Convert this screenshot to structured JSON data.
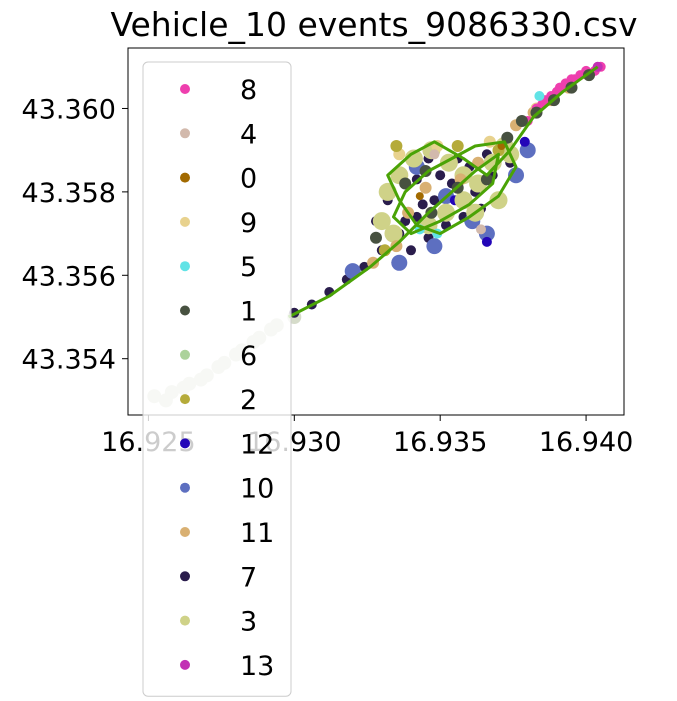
{
  "chart_data": {
    "type": "scatter",
    "title": "Vehicle_10 events_9086330.csv",
    "xlabel": "",
    "ylabel": "",
    "xlim": [
      16.9243,
      16.9413
    ],
    "ylim": [
      43.35265,
      43.36145
    ],
    "xticks": [
      16.925,
      16.93,
      16.935,
      16.94
    ],
    "xtick_labels": [
      "16.925",
      "16.930",
      "16.935",
      "16.940"
    ],
    "yticks": [
      43.354,
      43.356,
      43.358,
      43.36
    ],
    "ytick_labels": [
      "43.354",
      "43.356",
      "43.358",
      "43.360"
    ],
    "grid": false,
    "legend_position": "upper-left",
    "legend": [
      {
        "label": "8",
        "color": "#ee3fae"
      },
      {
        "label": "4",
        "color": "#d2b9ac"
      },
      {
        "label": "0",
        "color": "#a26a00"
      },
      {
        "label": "9",
        "color": "#e8d28e"
      },
      {
        "label": "5",
        "color": "#61e3e6"
      },
      {
        "label": "1",
        "color": "#475140"
      },
      {
        "label": "6",
        "color": "#acd29b"
      },
      {
        "label": "2",
        "color": "#b5ab3a"
      },
      {
        "label": "12",
        "color": "#2306b8"
      },
      {
        "label": "10",
        "color": "#5d6fc0"
      },
      {
        "label": "11",
        "color": "#d9b072"
      },
      {
        "label": "7",
        "color": "#2a1d4c"
      },
      {
        "label": "3",
        "color": "#cfd288"
      },
      {
        "label": "13",
        "color": "#c22fb4"
      }
    ],
    "series": [
      {
        "name": "6",
        "color": "#d6dcca",
        "marker_size": 7,
        "points": [
          [
            16.9252,
            43.3531
          ],
          [
            16.9258,
            43.3532
          ],
          [
            16.9264,
            43.3534
          ],
          [
            16.927,
            43.3536
          ],
          [
            16.9276,
            43.3539
          ],
          [
            16.9282,
            43.3542
          ],
          [
            16.9288,
            43.3545
          ],
          [
            16.9294,
            43.3548
          ],
          [
            16.93,
            43.355
          ],
          [
            16.9256,
            43.353
          ],
          [
            16.9262,
            43.3533
          ],
          [
            16.9268,
            43.3535
          ],
          [
            16.9274,
            43.3538
          ],
          [
            16.928,
            43.3541
          ],
          [
            16.9286,
            43.3544
          ],
          [
            16.9292,
            43.3547
          ]
        ]
      },
      {
        "name": "7",
        "color": "#2a1d4c",
        "marker_size": 5,
        "points": [
          [
            16.93,
            43.3551
          ],
          [
            16.9306,
            43.3553
          ],
          [
            16.9312,
            43.3556
          ],
          [
            16.9318,
            43.3559
          ],
          [
            16.9324,
            43.3562
          ],
          [
            16.933,
            43.3566
          ],
          [
            16.9336,
            43.357
          ],
          [
            16.9342,
            43.3574
          ],
          [
            16.9348,
            43.3578
          ],
          [
            16.9354,
            43.3582
          ],
          [
            16.936,
            43.3586
          ],
          [
            16.9366,
            43.3589
          ],
          [
            16.9372,
            43.3591
          ],
          [
            16.9335,
            43.3563
          ],
          [
            16.934,
            43.3566
          ],
          [
            16.9346,
            43.3569
          ],
          [
            16.9352,
            43.3572
          ],
          [
            16.9358,
            43.3574
          ],
          [
            16.9364,
            43.3576
          ],
          [
            16.9338,
            43.3573
          ],
          [
            16.9344,
            43.3577
          ],
          [
            16.935,
            43.3584
          ],
          [
            16.9356,
            43.3588
          ],
          [
            16.9362,
            43.358
          ],
          [
            16.9368,
            43.3584
          ],
          [
            16.9374,
            43.3587
          ],
          [
            16.9332,
            43.3578
          ],
          [
            16.9328,
            43.3573
          ],
          [
            16.9342,
            43.3583
          ],
          [
            16.9346,
            43.3588
          ]
        ]
      },
      {
        "name": "10",
        "color": "#5d6fc0",
        "marker_size": 8,
        "points": [
          [
            16.9336,
            43.3563
          ],
          [
            16.9348,
            43.3567
          ],
          [
            16.9366,
            43.357
          ],
          [
            16.9376,
            43.3584
          ],
          [
            16.938,
            43.359
          ],
          [
            16.9352,
            43.3579
          ],
          [
            16.9342,
            43.3586
          ],
          [
            16.932,
            43.3561
          ],
          [
            16.9361,
            43.3573
          ]
        ]
      },
      {
        "name": "12",
        "color": "#2306b8",
        "marker_size": 5,
        "points": [
          [
            16.9379,
            43.3592
          ],
          [
            16.9366,
            43.3568
          ],
          [
            16.9355,
            43.3578
          ]
        ]
      },
      {
        "name": "3",
        "color": "#cfd288",
        "marker_size": 9,
        "points": [
          [
            16.9332,
            43.358
          ],
          [
            16.9336,
            43.3584
          ],
          [
            16.9341,
            43.3588
          ],
          [
            16.9347,
            43.359
          ],
          [
            16.9353,
            43.3587
          ],
          [
            16.9358,
            43.3584
          ],
          [
            16.9363,
            43.3582
          ],
          [
            16.9368,
            43.3587
          ],
          [
            16.9372,
            43.3591
          ],
          [
            16.933,
            43.3573
          ],
          [
            16.9334,
            43.357
          ],
          [
            16.9346,
            43.3572
          ],
          [
            16.9352,
            43.3575
          ],
          [
            16.9358,
            43.3578
          ],
          [
            16.9362,
            43.3575
          ],
          [
            16.937,
            43.3578
          ],
          [
            16.9374,
            43.3589
          ]
        ]
      },
      {
        "name": "11",
        "color": "#d9b072",
        "marker_size": 6,
        "points": [
          [
            16.9376,
            43.3596
          ],
          [
            16.9382,
            43.3599
          ],
          [
            16.9388,
            43.3602
          ],
          [
            16.9394,
            43.3605
          ],
          [
            16.9339,
            43.3575
          ],
          [
            16.9345,
            43.3581
          ],
          [
            16.9357,
            43.3583
          ],
          [
            16.9363,
            43.3587
          ],
          [
            16.9327,
            43.3563
          ],
          [
            16.9335,
            43.3567
          ]
        ]
      },
      {
        "name": "9",
        "color": "#e8d28e",
        "marker_size": 6,
        "points": [
          [
            16.9383,
            43.36
          ],
          [
            16.9349,
            43.3591
          ],
          [
            16.9336,
            43.3589
          ],
          [
            16.9367,
            43.3592
          ]
        ]
      },
      {
        "name": "8",
        "color": "#ee3fae",
        "marker_size": 5,
        "points": [
          [
            16.938,
            43.3597
          ],
          [
            16.9385,
            43.3601
          ],
          [
            16.939,
            43.3604
          ],
          [
            16.9395,
            43.3607
          ],
          [
            16.94,
            43.3609
          ],
          [
            16.9405,
            43.361
          ],
          [
            16.9383,
            43.36
          ],
          [
            16.9388,
            43.3603
          ],
          [
            16.9393,
            43.3606
          ],
          [
            16.9398,
            43.3608
          ],
          [
            16.9403,
            43.3609
          ],
          [
            16.9386,
            43.3602
          ],
          [
            16.9391,
            43.3605
          ],
          [
            16.9396,
            43.3607
          ]
        ]
      },
      {
        "name": "5",
        "color": "#61e3e6",
        "marker_size": 5,
        "points": [
          [
            16.9384,
            43.3603
          ],
          [
            16.9349,
            43.357
          ],
          [
            16.9343,
            43.3571
          ]
        ]
      },
      {
        "name": "2",
        "color": "#b5ab3a",
        "marker_size": 6,
        "points": [
          [
            16.9335,
            43.3591
          ],
          [
            16.9356,
            43.3591
          ],
          [
            16.937,
            43.359
          ],
          [
            16.9331,
            43.3566
          ]
        ]
      },
      {
        "name": "1",
        "color": "#475140",
        "marker_size": 6,
        "points": [
          [
            16.9373,
            43.3593
          ],
          [
            16.9378,
            43.3597
          ],
          [
            16.9383,
            43.3599
          ],
          [
            16.9389,
            43.3602
          ],
          [
            16.9395,
            43.3605
          ],
          [
            16.9401,
            43.3608
          ],
          [
            16.9347,
            43.3575
          ],
          [
            16.9356,
            43.3581
          ],
          [
            16.9338,
            43.3582
          ],
          [
            16.9345,
            43.3585
          ],
          [
            16.9366,
            43.3583
          ],
          [
            16.9328,
            43.3569
          ]
        ]
      },
      {
        "name": "0",
        "color": "#a26a00",
        "marker_size": 4,
        "points": [
          [
            16.9371,
            43.3591
          ],
          [
            16.9343,
            43.3579
          ]
        ]
      },
      {
        "name": "4",
        "color": "#d2b9ac",
        "marker_size": 5,
        "points": [
          [
            16.9348,
            43.3589
          ],
          [
            16.9364,
            43.3571
          ]
        ]
      },
      {
        "name": "13",
        "color": "#c22fb4",
        "marker_size": 5,
        "points": [
          [
            16.9404,
            43.361
          ]
        ]
      }
    ],
    "overlay_path": {
      "color": "#4aa306",
      "points": [
        [
          16.9298,
          43.355
        ],
        [
          16.9312,
          43.3555
        ],
        [
          16.9326,
          43.3562
        ],
        [
          16.9336,
          43.3568
        ],
        [
          16.9346,
          43.3575
        ],
        [
          16.9354,
          43.358
        ],
        [
          16.9362,
          43.3585
        ],
        [
          16.937,
          43.3589
        ],
        [
          16.9368,
          43.3582
        ],
        [
          16.936,
          43.3577
        ],
        [
          16.935,
          43.3573
        ],
        [
          16.934,
          43.357
        ],
        [
          16.9334,
          43.3574
        ],
        [
          16.9338,
          43.358
        ],
        [
          16.9346,
          43.3585
        ],
        [
          16.9354,
          43.3588
        ],
        [
          16.9362,
          43.3591
        ],
        [
          16.9372,
          43.3592
        ],
        [
          16.9376,
          43.3586
        ],
        [
          16.937,
          43.3579
        ],
        [
          16.936,
          43.3574
        ],
        [
          16.935,
          43.357
        ],
        [
          16.9342,
          43.3572
        ],
        [
          16.9336,
          43.3578
        ],
        [
          16.9332,
          43.3584
        ],
        [
          16.934,
          43.3589
        ],
        [
          16.9348,
          43.3592
        ],
        [
          16.9358,
          43.3588
        ],
        [
          16.9366,
          43.3584
        ],
        [
          16.9374,
          43.359
        ],
        [
          16.9382,
          43.3598
        ],
        [
          16.9392,
          43.3604
        ],
        [
          16.9404,
          43.361
        ]
      ]
    }
  }
}
